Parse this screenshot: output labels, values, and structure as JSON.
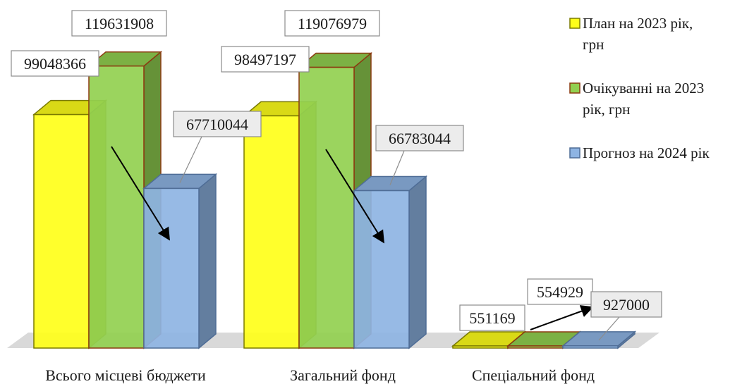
{
  "chart_data": {
    "type": "bar",
    "title": "",
    "xlabel": "",
    "ylabel": "",
    "ylim": [
      0,
      130000000
    ],
    "grid": false,
    "legend_position": "right",
    "categories": [
      "Всього місцеві бюджети",
      "Загальний фонд",
      "Спеціальний фонд"
    ],
    "series": [
      {
        "name": "План на 2023 рік, грн",
        "name_lines": [
          "План на 2023 рік,",
          "грн"
        ],
        "color": "#ffff1a",
        "edge": "#7a7a00",
        "values": [
          99048366,
          98497197,
          551169
        ]
      },
      {
        "name": "Очікуванні на 2023 рік, грн",
        "name_lines": [
          "Очікуванні на 2023",
          "рік, грн"
        ],
        "color": "#92d050",
        "edge": "#8b3a10",
        "values": [
          119631908,
          119076979,
          554929
        ]
      },
      {
        "name": "Прогноз на 2024 рік",
        "name_lines": [
          "Прогноз на 2024 рік"
        ],
        "color": "#8eb4e3",
        "edge": "#4f6d96",
        "values": [
          67710044,
          66783044,
          927000
        ]
      }
    ],
    "data_labels": [
      [
        "99048366",
        "98497197",
        "551169"
      ],
      [
        "119631908",
        "119076979",
        "554929"
      ],
      [
        "67710044",
        "66783044",
        "927000"
      ]
    ]
  }
}
